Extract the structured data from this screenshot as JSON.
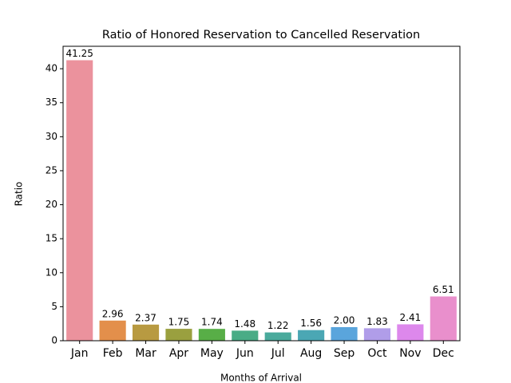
{
  "chart_data": {
    "type": "bar",
    "title": "Ratio of Honored Reservation to Cancelled Reservation",
    "xlabel": "Months of Arrival",
    "ylabel": "Ratio",
    "categories": [
      "Jan",
      "Feb",
      "Mar",
      "Apr",
      "May",
      "Jun",
      "Jul",
      "Aug",
      "Sep",
      "Oct",
      "Nov",
      "Dec"
    ],
    "values": [
      41.25,
      2.96,
      2.37,
      1.75,
      1.74,
      1.48,
      1.22,
      1.56,
      2.0,
      1.83,
      2.41,
      6.51
    ],
    "value_labels": [
      "41.25",
      "2.96",
      "2.37",
      "1.75",
      "1.74",
      "1.48",
      "1.22",
      "1.56",
      "2.00",
      "1.83",
      "2.41",
      "6.51"
    ],
    "colors": [
      "#eb929d",
      "#e38f4b",
      "#b89a41",
      "#9aa03f",
      "#58ae47",
      "#49ac86",
      "#4aaa9c",
      "#4ba7b4",
      "#5aa5dc",
      "#b09de9",
      "#dd88ec",
      "#e98fcc"
    ],
    "ylim": [
      0,
      43.3
    ],
    "yticks": [
      0,
      5,
      10,
      15,
      20,
      25,
      30,
      35,
      40
    ]
  }
}
